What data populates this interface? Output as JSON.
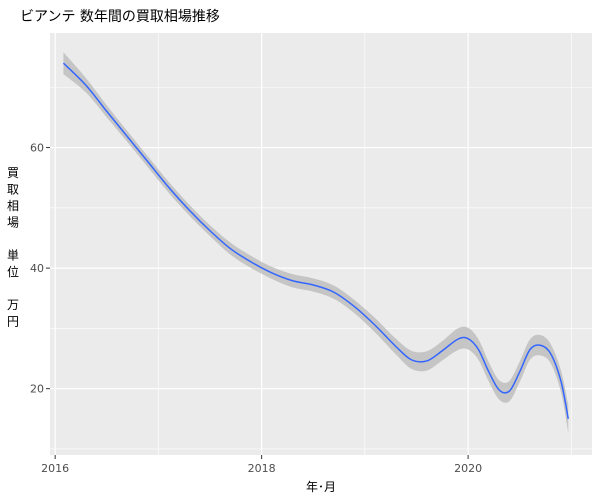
{
  "chart_data": {
    "type": "line",
    "title": "ビアンテ 数年間の買取相場推移",
    "xlabel": "年･月",
    "ylabel": "買取相場 単位 万円",
    "ylabel_lines": [
      "買",
      "取",
      "相",
      "場",
      "",
      "単",
      "位",
      "",
      "万",
      "円"
    ],
    "xlim": [
      2015.95,
      2021.2
    ],
    "ylim": [
      9,
      79
    ],
    "x_ticks": [
      2016,
      2018,
      2020
    ],
    "x_tick_labels": [
      "2016",
      "2018",
      "2020"
    ],
    "x_minor_ticks": [
      2017,
      2019,
      2021
    ],
    "y_ticks": [
      20,
      40,
      60
    ],
    "y_tick_labels": [
      "20",
      "40",
      "60"
    ],
    "y_minor_ticks": [
      10,
      30,
      50,
      70
    ],
    "grid": true,
    "panel_background": "#ebebeb",
    "grid_color": "#ffffff",
    "series": [
      {
        "line_color": "#3366ff",
        "band_color": "#bebebe",
        "x": [
          2016.08,
          2016.3,
          2016.5,
          2016.7,
          2016.9,
          2017.1,
          2017.3,
          2017.5,
          2017.7,
          2017.9,
          2018.1,
          2018.3,
          2018.5,
          2018.7,
          2018.9,
          2019.1,
          2019.3,
          2019.45,
          2019.6,
          2019.75,
          2019.9,
          2020.0,
          2020.1,
          2020.2,
          2020.3,
          2020.4,
          2020.5,
          2020.6,
          2020.7,
          2020.8,
          2020.9,
          2020.97
        ],
        "y": [
          74,
          70.3,
          66,
          61.8,
          57.6,
          53.4,
          49.6,
          46.2,
          43.2,
          41,
          39.2,
          37.9,
          37.2,
          36,
          33.6,
          30.5,
          27,
          24.8,
          24.6,
          26.3,
          28.2,
          28.3,
          26.5,
          22.8,
          19.8,
          19.6,
          22.8,
          26.5,
          27.2,
          25.8,
          21.2,
          15
        ],
        "band_half_width": [
          1.8,
          1.2,
          1.0,
          0.9,
          0.9,
          0.9,
          0.9,
          0.9,
          1.0,
          1.0,
          1.0,
          1.1,
          1.1,
          1.1,
          1.1,
          1.2,
          1.3,
          1.5,
          1.6,
          1.6,
          1.8,
          1.8,
          1.7,
          1.6,
          1.6,
          1.7,
          1.7,
          1.7,
          1.7,
          1.6,
          1.8,
          2.3
        ]
      }
    ]
  }
}
